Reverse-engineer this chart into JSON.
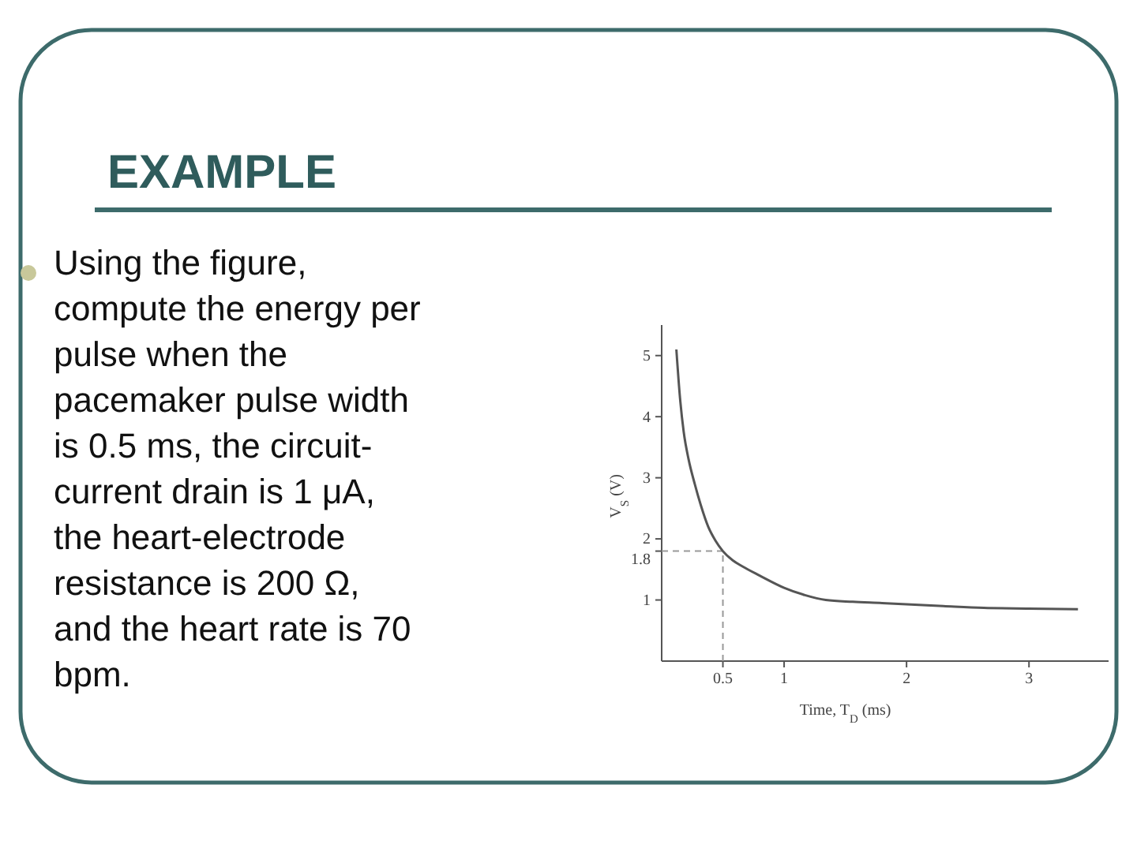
{
  "chart_data": {
    "type": "line",
    "title": "EXAMPLE",
    "annotations": [
      "Using the figure, compute the energy per pulse when the pacemaker pulse width is 0.5 ms, the circuit-current drain is 1 μA, the heart-electrode resistance is 200 Ω, and the heart rate is 70 bpm."
    ],
    "xlabel": "Time, T$_{D}$ (ms)",
    "ylabel": "V$_{S}$ (V)",
    "x": [
      0.12,
      0.15,
      0.18,
      0.22,
      0.27,
      0.32,
      0.38,
      0.44,
      0.5,
      0.58,
      0.66,
      0.8,
      1,
      1.17,
      1.34,
      1.56,
      1.8,
      2,
      2.3,
      2.63,
      3,
      3.4
    ],
    "series": [
      {
        "color": "#555555",
        "values": [
          5.1,
          4.3,
          3.75,
          3.3,
          2.9,
          2.55,
          2.2,
          1.97,
          1.8,
          1.65,
          1.55,
          1.4,
          1.2,
          1.08,
          1,
          0.97,
          0.95,
          0.93,
          0.9,
          0.87,
          0.86,
          0.85
        ]
      }
    ],
    "xlim": [
      0,
      3.65
    ],
    "ylim": [
      0,
      5.5
    ],
    "xticks": [
      0.5,
      1,
      2,
      3
    ],
    "yticks": [
      1,
      1.8,
      2,
      3,
      4,
      5
    ],
    "ref_lines": [
      {
        "axis": "x",
        "value": 0.5,
        "line_style": "dashed",
        "color": "#999999"
      },
      {
        "axis": "y",
        "value": 1.8,
        "line_style": "dashed",
        "color": "#999999"
      }
    ],
    "marker": "none",
    "line_style": "solid"
  }
}
